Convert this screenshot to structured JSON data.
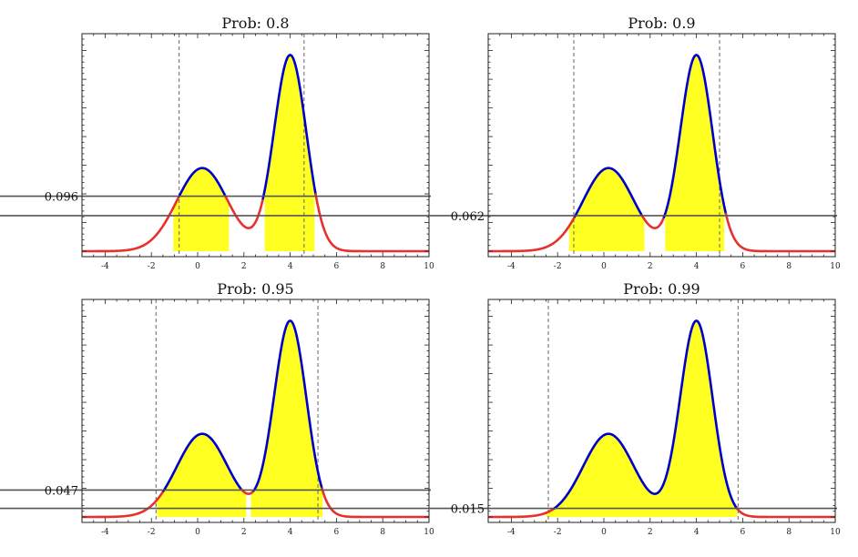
{
  "chart_data": [
    {
      "type": "line",
      "title": "Prob: 0.8",
      "xlim": [
        -5,
        10
      ],
      "x_ticks": [
        -4,
        -2,
        0,
        2,
        4,
        6,
        8,
        10
      ],
      "x_tick_labels": [
        "-4",
        "-2",
        "0",
        "2",
        "4",
        "6",
        "8",
        "10"
      ],
      "threshold": 0.096,
      "threshold_label": "0.096",
      "shaded_intervals": [
        [
          -1.05,
          1.35
        ],
        [
          2.9,
          5.05
        ]
      ],
      "dashed_lines": [
        -0.8,
        4.6
      ],
      "curve": {
        "mu1": 0.2,
        "sigma1": 1.1,
        "w1": 0.4,
        "mu2": 4.0,
        "sigma2": 0.7,
        "w2": 0.6
      }
    },
    {
      "type": "line",
      "title": "Prob: 0.9",
      "xlim": [
        -5,
        10
      ],
      "x_ticks": [
        -4,
        -2,
        0,
        2,
        4,
        6,
        8,
        10
      ],
      "x_tick_labels": [
        "-4",
        "-2",
        "0",
        "2",
        "4",
        "6",
        "8",
        "10"
      ],
      "threshold": 0.062,
      "threshold_label": "0.062",
      "shaded_intervals": [
        [
          -1.5,
          1.75
        ],
        [
          2.65,
          5.2
        ]
      ],
      "dashed_lines": [
        -1.3,
        5.0
      ],
      "curve": {
        "mu1": 0.2,
        "sigma1": 1.1,
        "w1": 0.4,
        "mu2": 4.0,
        "sigma2": 0.7,
        "w2": 0.6
      }
    },
    {
      "type": "line",
      "title": "Prob: 0.95",
      "xlim": [
        -5,
        10
      ],
      "x_ticks": [
        -4,
        -2,
        0,
        2,
        4,
        6,
        8,
        10
      ],
      "x_tick_labels": [
        "-4",
        "-2",
        "0",
        "2",
        "4",
        "6",
        "8",
        "10"
      ],
      "threshold": 0.047,
      "threshold_label": "0.047",
      "shaded_intervals": [
        [
          -1.75,
          2.1
        ],
        [
          2.3,
          5.4
        ]
      ],
      "dashed_lines": [
        -1.8,
        5.2
      ],
      "curve": {
        "mu1": 0.2,
        "sigma1": 1.1,
        "w1": 0.4,
        "mu2": 4.0,
        "sigma2": 0.7,
        "w2": 0.6
      }
    },
    {
      "type": "line",
      "title": "Prob: 0.99",
      "xlim": [
        -5,
        10
      ],
      "x_ticks": [
        -4,
        -2,
        0,
        2,
        4,
        6,
        8,
        10
      ],
      "x_tick_labels": [
        "-4",
        "-2",
        "0",
        "2",
        "4",
        "6",
        "8",
        "10"
      ],
      "threshold": 0.015,
      "threshold_label": "0.015",
      "shaded_intervals": [
        [
          -2.5,
          5.75
        ]
      ],
      "dashed_lines": [
        -2.4,
        5.8
      ],
      "curve": {
        "mu1": 0.2,
        "sigma1": 1.1,
        "w1": 0.4,
        "mu2": 4.0,
        "sigma2": 0.7,
        "w2": 0.6
      }
    }
  ],
  "colors": {
    "above_threshold": "#0000cc",
    "below_threshold": "#e8302c",
    "fill": "#ffff22",
    "threshold_line": "#555555",
    "dashed": "#666666",
    "frame": "#222222"
  }
}
